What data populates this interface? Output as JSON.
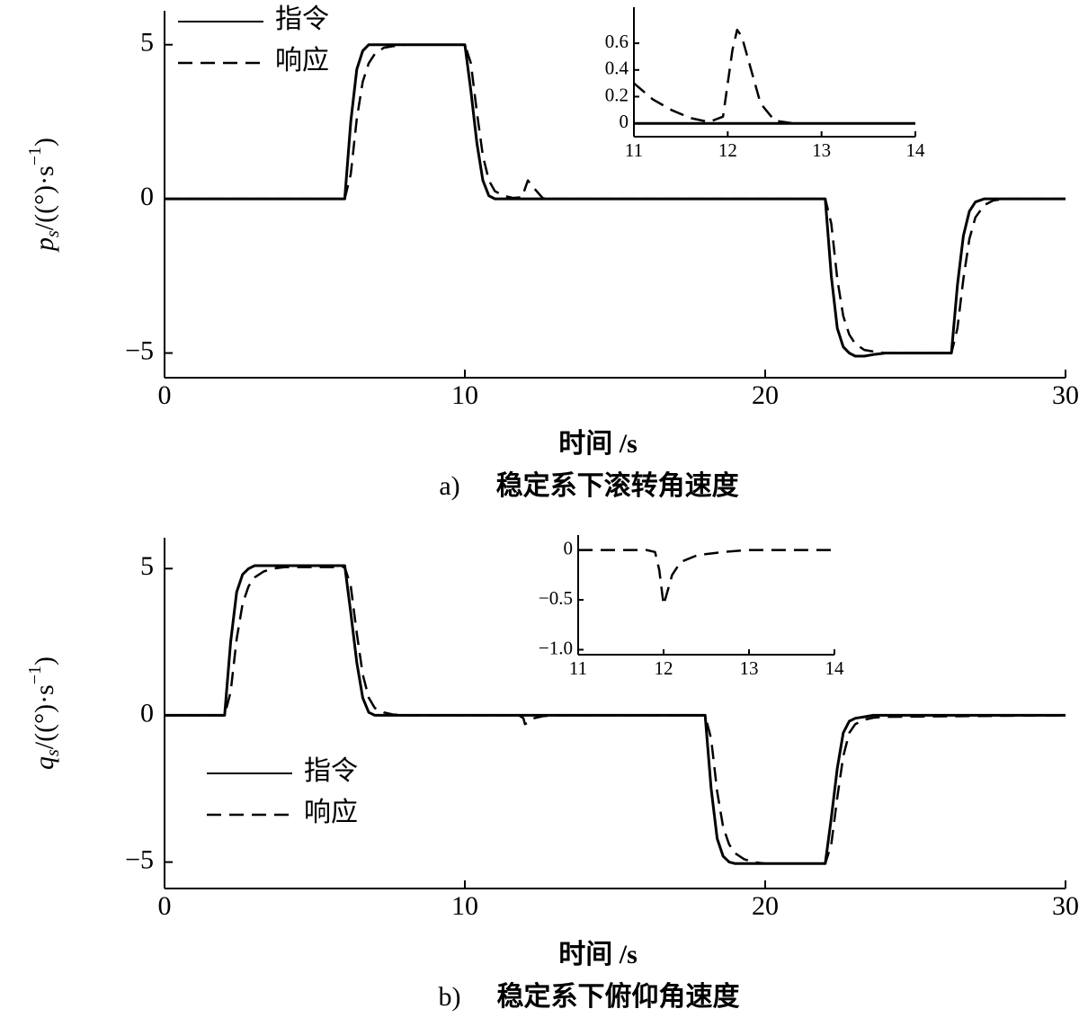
{
  "chart_data": [
    {
      "type": "line",
      "xlabel": "时间 /s",
      "caption_label": "a)",
      "caption": "稳定系下滚转角速度",
      "ylabel": {
        "symbol": "p",
        "sub": "s",
        "unit": "/((°)·s",
        "sup": "−1",
        "close": ")"
      },
      "xlim": [
        0,
        30
      ],
      "ylim": [
        -5.8,
        6.1
      ],
      "xticks": [
        0,
        10,
        20,
        30
      ],
      "yticks": [
        {
          "value": -5,
          "label": "−5"
        },
        0,
        5
      ],
      "legend": "upper left",
      "x": [
        0,
        6,
        6.2,
        6.4,
        6.6,
        6.8,
        7,
        7.3,
        7.6,
        8,
        10,
        10.2,
        10.4,
        10.6,
        10.8,
        11,
        11.3,
        11.6,
        11.9,
        12.1,
        12.3,
        12.6,
        13,
        14,
        22,
        22.2,
        22.4,
        22.6,
        22.8,
        23,
        23.3,
        23.6,
        24,
        26.2,
        26.4,
        26.6,
        26.8,
        27,
        27.3,
        27.6,
        28,
        30
      ],
      "series": [
        {
          "name": "指令",
          "color": "#000000",
          "linestyle": "solid",
          "values": [
            0,
            0,
            2.5,
            4.2,
            4.8,
            5,
            5,
            5,
            5,
            5,
            5,
            3.5,
            1.8,
            0.6,
            0.1,
            0,
            0,
            0,
            0,
            0,
            0,
            0,
            0,
            0,
            0,
            -2.5,
            -4.2,
            -4.8,
            -5,
            -5.1,
            -5.1,
            -5.05,
            -5,
            -5,
            -2.8,
            -1.2,
            -0.4,
            -0.1,
            0,
            0,
            0,
            0
          ]
        },
        {
          "name": "响应",
          "color": "#000000",
          "linestyle": "dashed",
          "values": [
            0,
            0,
            0.8,
            2.6,
            3.8,
            4.4,
            4.7,
            4.9,
            4.95,
            5,
            5,
            4.4,
            2.8,
            1.4,
            0.6,
            0.25,
            0.1,
            0.03,
            0.05,
            0.6,
            0.35,
            0.02,
            0,
            0,
            0,
            -0.8,
            -2.6,
            -3.8,
            -4.4,
            -4.7,
            -4.9,
            -4.95,
            -5,
            -5,
            -4.2,
            -2.6,
            -1.3,
            -0.6,
            -0.2,
            -0.05,
            0,
            0
          ]
        }
      ]
    },
    {
      "type": "line",
      "xlim": [
        11,
        14
      ],
      "ylim": [
        -0.1,
        0.87
      ],
      "xticks": [
        11,
        12,
        13,
        14
      ],
      "yticks": [
        0,
        0.2,
        0.4,
        0.6
      ],
      "x": [
        11,
        11.2,
        11.4,
        11.6,
        11.8,
        11.95,
        12.05,
        12.1,
        12.15,
        12.25,
        12.35,
        12.5,
        12.7,
        13,
        14
      ],
      "series": [
        {
          "color": "#000000",
          "linestyle": "solid",
          "values": [
            0,
            0,
            0,
            0,
            0,
            0,
            0,
            0,
            0,
            0,
            0,
            0,
            0,
            0,
            0
          ]
        },
        {
          "color": "#000000",
          "linestyle": "dashed",
          "values": [
            0.3,
            0.18,
            0.1,
            0.04,
            0.01,
            0.05,
            0.55,
            0.7,
            0.65,
            0.4,
            0.15,
            0.02,
            0,
            0,
            0
          ]
        }
      ]
    },
    {
      "type": "line",
      "xlabel": "时间 /s",
      "caption_label": "b)",
      "caption": "稳定系下俯仰角速度",
      "ylabel": {
        "symbol": "q",
        "sub": "s",
        "unit": "/((°)·s",
        "sup": "−1",
        "close": ")"
      },
      "xlim": [
        0,
        30
      ],
      "ylim": [
        -5.9,
        6.05
      ],
      "xticks": [
        0,
        10,
        20,
        30
      ],
      "yticks": [
        {
          "value": -5,
          "label": "−5"
        },
        0,
        5
      ],
      "legend": "lower left",
      "x": [
        0,
        2,
        2.2,
        2.4,
        2.6,
        2.8,
        3,
        3.3,
        3.6,
        4,
        6,
        6.2,
        6.4,
        6.6,
        6.8,
        7,
        7.3,
        7.6,
        8,
        11.8,
        11.95,
        12,
        12.1,
        12.3,
        12.6,
        13,
        18,
        18.2,
        18.4,
        18.6,
        18.8,
        19,
        19.3,
        19.6,
        20,
        22,
        22.2,
        22.4,
        22.6,
        22.8,
        23,
        23.3,
        23.6,
        24,
        30
      ],
      "series": [
        {
          "name": "指令",
          "color": "#000000",
          "linestyle": "solid",
          "values": [
            0,
            0,
            2.5,
            4.2,
            4.8,
            5,
            5.1,
            5.1,
            5.1,
            5.1,
            5.1,
            3.5,
            1.8,
            0.6,
            0.1,
            0,
            0,
            0,
            0,
            0,
            0,
            0,
            0,
            0,
            0,
            0,
            0,
            -2.5,
            -4.2,
            -4.8,
            -5,
            -5.05,
            -5.05,
            -5.05,
            -5.05,
            -5.05,
            -3.5,
            -1.8,
            -0.6,
            -0.2,
            -0.1,
            -0.05,
            0,
            0,
            0
          ]
        },
        {
          "name": "响应",
          "color": "#000000",
          "linestyle": "dashed",
          "values": [
            0,
            0,
            0.8,
            2.6,
            3.8,
            4.4,
            4.7,
            4.9,
            5,
            5.05,
            5.05,
            4.4,
            2.8,
            1.4,
            0.6,
            0.25,
            0.1,
            0.03,
            0,
            0,
            -0.1,
            -0.3,
            -0.25,
            -0.1,
            -0.03,
            0,
            0,
            -0.8,
            -2.6,
            -3.8,
            -4.4,
            -4.7,
            -4.9,
            -5,
            -5.05,
            -5.05,
            -4.4,
            -2.8,
            -1.4,
            -0.6,
            -0.3,
            -0.15,
            -0.08,
            -0.05,
            0
          ]
        }
      ]
    },
    {
      "type": "line",
      "xlim": [
        11,
        14
      ],
      "ylim": [
        -1.05,
        0.15
      ],
      "xticks": [
        11,
        12,
        13,
        14
      ],
      "yticks": [
        {
          "value": -1.0,
          "label": "−1.0"
        },
        {
          "value": -0.5,
          "label": "−0.5"
        },
        0
      ],
      "x": [
        11,
        11.8,
        11.9,
        11.95,
        12,
        12.05,
        12.1,
        12.2,
        12.4,
        12.7,
        13,
        14
      ],
      "series": [
        {
          "color": "#000000",
          "linestyle": "dashed",
          "values": [
            0,
            0,
            -0.02,
            -0.2,
            -0.55,
            -0.4,
            -0.25,
            -0.12,
            -0.05,
            -0.02,
            0,
            0
          ]
        }
      ]
    }
  ]
}
